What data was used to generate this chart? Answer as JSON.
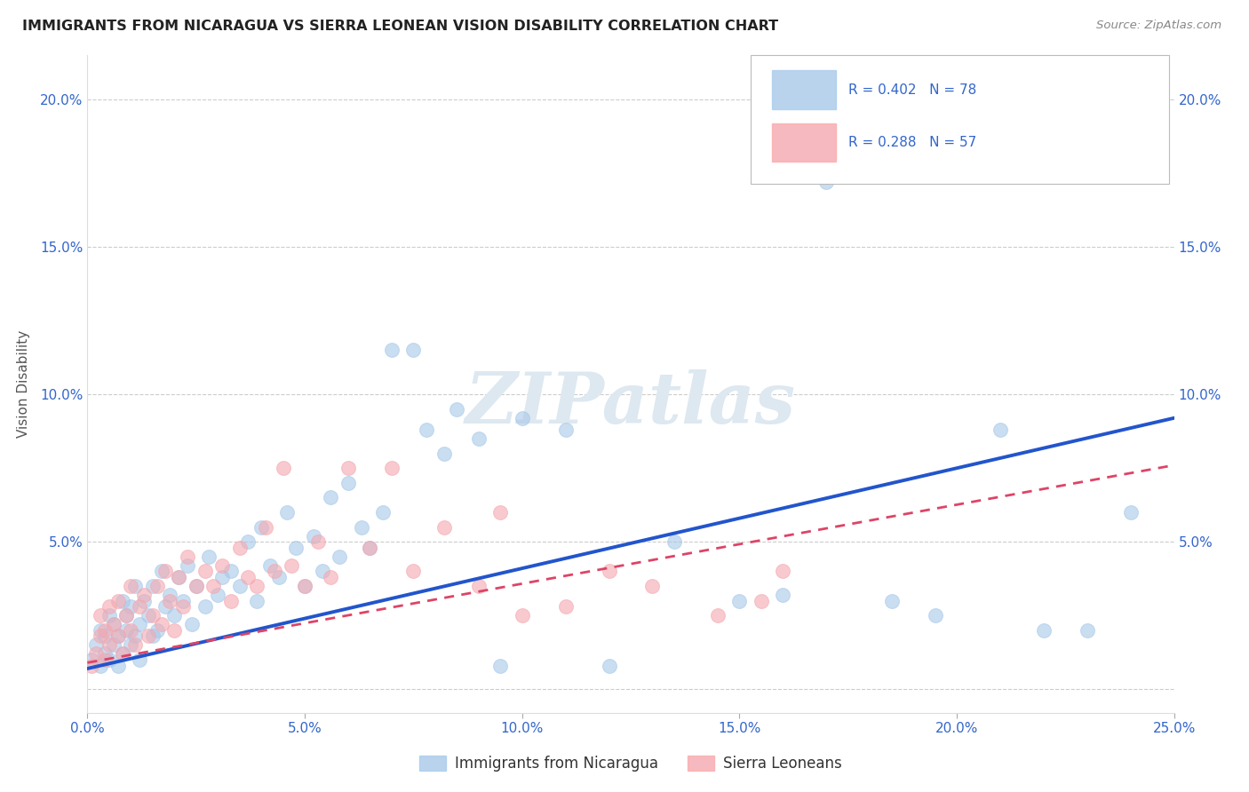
{
  "title": "IMMIGRANTS FROM NICARAGUA VS SIERRA LEONEAN VISION DISABILITY CORRELATION CHART",
  "source": "Source: ZipAtlas.com",
  "ylabel": "Vision Disability",
  "r_nicaragua": 0.402,
  "n_nicaragua": 78,
  "r_sierra": 0.288,
  "n_sierra": 57,
  "color_nicaragua": "#a8c8e8",
  "color_sierra": "#f4a8b0",
  "trendline_nicaragua": "#2255cc",
  "trendline_sierra": "#dd4466",
  "xmin": 0.0,
  "xmax": 0.25,
  "ymin": -0.008,
  "ymax": 0.215,
  "xticks": [
    0.0,
    0.05,
    0.1,
    0.15,
    0.2,
    0.25
  ],
  "yticks": [
    0.0,
    0.05,
    0.1,
    0.15,
    0.2
  ],
  "legend_nicaragua": "Immigrants from Nicaragua",
  "legend_sierra": "Sierra Leoneans",
  "watermark": "ZIPatlas",
  "background_color": "#ffffff",
  "grid_color": "#cccccc",
  "trendline_nic_x0": 0.0,
  "trendline_nic_y0": 0.007,
  "trendline_nic_x1": 0.25,
  "trendline_nic_y1": 0.092,
  "trendline_sl_x0": 0.0,
  "trendline_sl_y0": 0.009,
  "trendline_sl_x1": 0.25,
  "trendline_sl_y1": 0.076,
  "nic_points_x": [
    0.001,
    0.002,
    0.003,
    0.003,
    0.004,
    0.004,
    0.005,
    0.005,
    0.006,
    0.006,
    0.007,
    0.007,
    0.008,
    0.008,
    0.009,
    0.009,
    0.01,
    0.01,
    0.011,
    0.011,
    0.012,
    0.012,
    0.013,
    0.014,
    0.015,
    0.015,
    0.016,
    0.017,
    0.018,
    0.019,
    0.02,
    0.021,
    0.022,
    0.023,
    0.024,
    0.025,
    0.027,
    0.028,
    0.03,
    0.031,
    0.033,
    0.035,
    0.037,
    0.039,
    0.04,
    0.042,
    0.044,
    0.046,
    0.048,
    0.05,
    0.052,
    0.054,
    0.056,
    0.058,
    0.06,
    0.063,
    0.065,
    0.068,
    0.07,
    0.075,
    0.078,
    0.082,
    0.085,
    0.09,
    0.095,
    0.1,
    0.11,
    0.12,
    0.135,
    0.15,
    0.16,
    0.17,
    0.185,
    0.195,
    0.21,
    0.22,
    0.23,
    0.24
  ],
  "nic_points_y": [
    0.01,
    0.015,
    0.008,
    0.02,
    0.012,
    0.018,
    0.025,
    0.01,
    0.015,
    0.022,
    0.008,
    0.018,
    0.03,
    0.012,
    0.02,
    0.025,
    0.015,
    0.028,
    0.018,
    0.035,
    0.01,
    0.022,
    0.03,
    0.025,
    0.018,
    0.035,
    0.02,
    0.04,
    0.028,
    0.032,
    0.025,
    0.038,
    0.03,
    0.042,
    0.022,
    0.035,
    0.028,
    0.045,
    0.032,
    0.038,
    0.04,
    0.035,
    0.05,
    0.03,
    0.055,
    0.042,
    0.038,
    0.06,
    0.048,
    0.035,
    0.052,
    0.04,
    0.065,
    0.045,
    0.07,
    0.055,
    0.048,
    0.06,
    0.115,
    0.115,
    0.088,
    0.08,
    0.095,
    0.085,
    0.008,
    0.092,
    0.088,
    0.008,
    0.05,
    0.03,
    0.032,
    0.172,
    0.03,
    0.025,
    0.088,
    0.02,
    0.02,
    0.06
  ],
  "sl_points_x": [
    0.001,
    0.002,
    0.003,
    0.003,
    0.004,
    0.004,
    0.005,
    0.005,
    0.006,
    0.007,
    0.007,
    0.008,
    0.009,
    0.01,
    0.01,
    0.011,
    0.012,
    0.013,
    0.014,
    0.015,
    0.016,
    0.017,
    0.018,
    0.019,
    0.02,
    0.021,
    0.022,
    0.023,
    0.025,
    0.027,
    0.029,
    0.031,
    0.033,
    0.035,
    0.037,
    0.039,
    0.041,
    0.043,
    0.045,
    0.047,
    0.05,
    0.053,
    0.056,
    0.06,
    0.065,
    0.07,
    0.075,
    0.082,
    0.09,
    0.095,
    0.1,
    0.11,
    0.12,
    0.13,
    0.145,
    0.155,
    0.16
  ],
  "sl_points_y": [
    0.008,
    0.012,
    0.018,
    0.025,
    0.01,
    0.02,
    0.015,
    0.028,
    0.022,
    0.018,
    0.03,
    0.012,
    0.025,
    0.02,
    0.035,
    0.015,
    0.028,
    0.032,
    0.018,
    0.025,
    0.035,
    0.022,
    0.04,
    0.03,
    0.02,
    0.038,
    0.028,
    0.045,
    0.035,
    0.04,
    0.035,
    0.042,
    0.03,
    0.048,
    0.038,
    0.035,
    0.055,
    0.04,
    0.075,
    0.042,
    0.035,
    0.05,
    0.038,
    0.075,
    0.048,
    0.075,
    0.04,
    0.055,
    0.035,
    0.06,
    0.025,
    0.028,
    0.04,
    0.035,
    0.025,
    0.03,
    0.04
  ]
}
